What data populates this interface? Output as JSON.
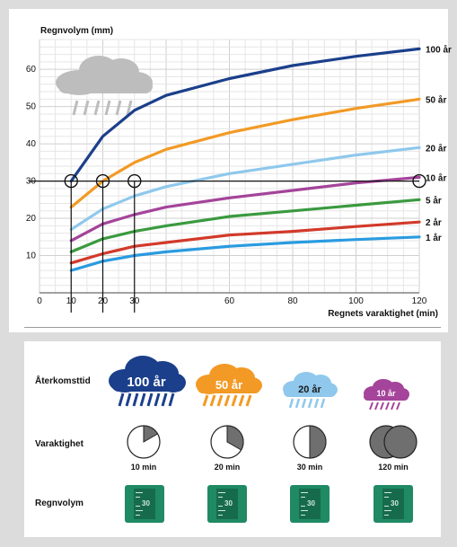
{
  "chart_data": {
    "type": "line",
    "ylabel": "Regnvolym (mm)",
    "xlabel": "Regnets varaktighet (min)",
    "x_ticks": [
      0,
      10,
      20,
      30,
      60,
      80,
      100,
      120
    ],
    "y_ticks": [
      10,
      20,
      30,
      40,
      50,
      60
    ],
    "xlim": [
      0,
      120
    ],
    "ylim": [
      0,
      68
    ],
    "grid": true,
    "series": [
      {
        "name": "100 år",
        "color": "#1b3f8b",
        "x": [
          10,
          20,
          30,
          40,
          60,
          80,
          100,
          120
        ],
        "values": [
          30,
          42,
          49,
          53,
          57.5,
          61,
          63.5,
          65.5
        ]
      },
      {
        "name": "50 år",
        "color": "#f29a25",
        "x": [
          10,
          20,
          30,
          40,
          60,
          80,
          100,
          120
        ],
        "values": [
          23,
          30,
          35,
          38.5,
          43,
          46.5,
          49.5,
          52
        ]
      },
      {
        "name": "20 år",
        "color": "#8fc8ec",
        "x": [
          10,
          20,
          30,
          40,
          60,
          80,
          100,
          120
        ],
        "values": [
          17,
          22.5,
          26,
          28.5,
          32,
          34.5,
          37,
          39
        ]
      },
      {
        "name": "10 år",
        "color": "#a4449a",
        "x": [
          10,
          20,
          30,
          40,
          60,
          80,
          100,
          120
        ],
        "values": [
          14,
          18.5,
          21,
          23,
          25.5,
          27.5,
          29.5,
          31
        ]
      },
      {
        "name": "5 år",
        "color": "#3a9a3e",
        "x": [
          10,
          20,
          30,
          40,
          60,
          80,
          100,
          120
        ],
        "values": [
          11,
          14.5,
          16.5,
          18,
          20.5,
          22,
          23.5,
          25
        ]
      },
      {
        "name": "2 år",
        "color": "#d23a2a",
        "x": [
          10,
          20,
          30,
          40,
          60,
          80,
          100,
          120
        ],
        "values": [
          8,
          10.5,
          12.5,
          13.5,
          15.5,
          16.5,
          17.8,
          19
        ]
      },
      {
        "name": "1 år",
        "color": "#2a9be0",
        "x": [
          10,
          20,
          30,
          40,
          60,
          80,
          100,
          120
        ],
        "values": [
          6,
          8.5,
          10,
          11,
          12.5,
          13.5,
          14.3,
          15
        ]
      }
    ],
    "markers": [
      {
        "x": 10,
        "y": 30
      },
      {
        "x": 20,
        "y": 30
      },
      {
        "x": 30,
        "y": 30
      },
      {
        "x": 120,
        "y": 30
      }
    ],
    "reference_line_y": 30
  },
  "legend_panel": {
    "row_titles": {
      "return_period": "Återkomsttid",
      "duration": "Varaktighet",
      "volume": "Regnvolym"
    },
    "clouds": [
      {
        "label": "100 år",
        "color": "#1b3f8b"
      },
      {
        "label": "50 år",
        "color": "#f29a25"
      },
      {
        "label": "20 år",
        "color": "#8fc8ec"
      },
      {
        "label": "10 år",
        "color": "#a4449a"
      }
    ],
    "durations": [
      {
        "label": "10 min",
        "fraction": 0.1667
      },
      {
        "label": "20 min",
        "fraction": 0.3333
      },
      {
        "label": "30 min",
        "fraction": 0.5
      },
      {
        "label": "120 min",
        "fraction": 2
      }
    ],
    "gauge_value": "30"
  }
}
